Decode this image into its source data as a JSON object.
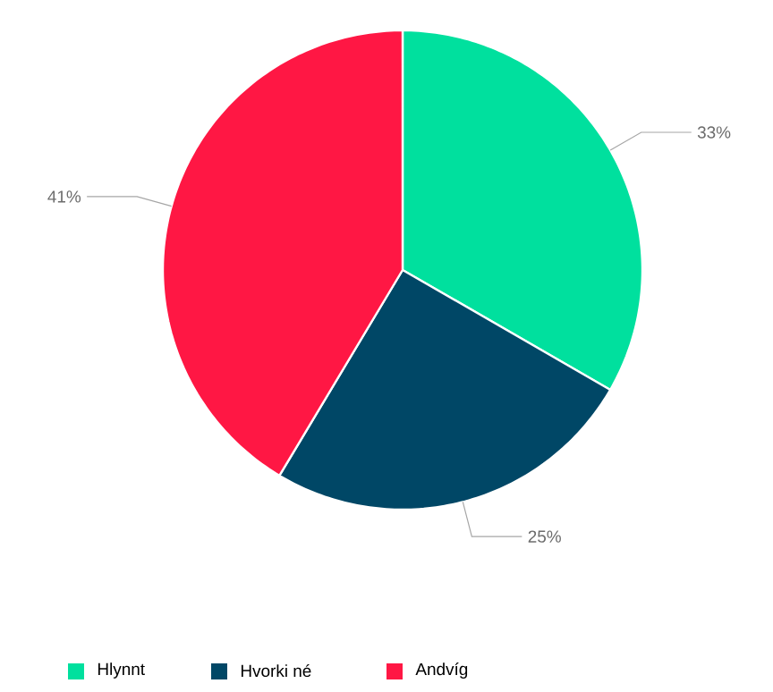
{
  "chart_data": {
    "type": "pie",
    "categories": [
      "Hlynnt",
      "Hvorki né",
      "Andvíg"
    ],
    "values": [
      33,
      25,
      41
    ],
    "value_labels": [
      "33%",
      "25%",
      "41%"
    ],
    "colors": [
      "#00e09e",
      "#004766",
      "#ff1744"
    ],
    "legend": "bottom"
  }
}
